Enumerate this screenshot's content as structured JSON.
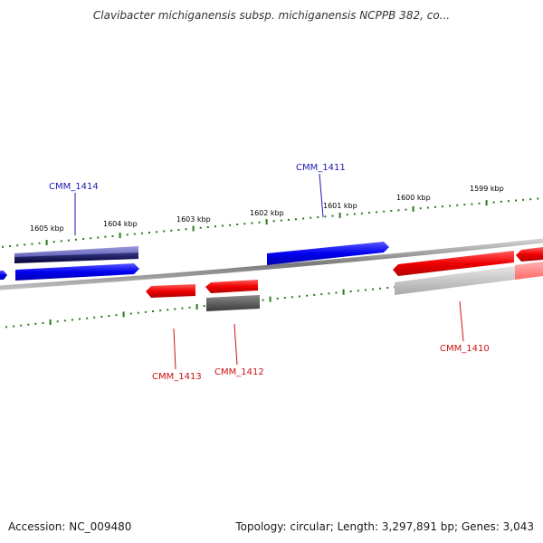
{
  "title": "Clavibacter michiganensis subsp. michiganensis NCPPB 382, co...",
  "footer": {
    "accession": "Accession: NC_009480",
    "topology": "Topology: circular; Length: 3,297,891 bp; Genes: 3,043"
  },
  "colors": {
    "forward_gene": "#0000ee",
    "reverse_gene": "#ee0000",
    "forward_label": "#1a1ab3",
    "reverse_label": "#cc1111",
    "tick": "#2a7a1a",
    "backbone": "#888888"
  },
  "icons": {
    "plus_strand_arrow": "right-arrow",
    "minus_strand_arrow": "left-arrow"
  },
  "scale": {
    "kbp_labels": [
      {
        "name": "kbp-1605",
        "text": "1605 kbp"
      },
      {
        "name": "kbp-1604",
        "text": "1604 kbp"
      },
      {
        "name": "kbp-1603",
        "text": "1603 kbp"
      },
      {
        "name": "kbp-1602",
        "text": "1602 kbp"
      },
      {
        "name": "kbp-1601",
        "text": "1601 kbp"
      },
      {
        "name": "kbp-1600",
        "text": "1600 kbp"
      },
      {
        "name": "kbp-1599",
        "text": "1599 kbp"
      }
    ]
  },
  "genes": [
    {
      "label": "CMM_1414",
      "strand": "forward"
    },
    {
      "label": "CMM_1411",
      "strand": "forward"
    },
    {
      "label": "CMM_1413",
      "strand": "reverse"
    },
    {
      "label": "CMM_1412",
      "strand": "reverse"
    },
    {
      "label": "CMM_1410",
      "strand": "reverse"
    }
  ]
}
